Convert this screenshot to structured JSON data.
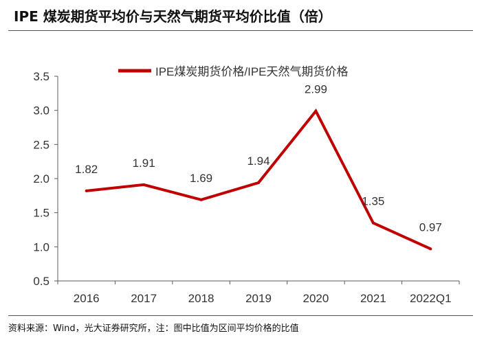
{
  "title": "IPE 煤炭期货平均价与天然气期货平均价比值（倍）",
  "source": "资料来源：Wind，光大证券研究所，注：图中比值为区间平均价格的比值",
  "colors": {
    "line": "#C00000",
    "text": "#333333",
    "axis": "#595959"
  },
  "chart_data": {
    "type": "line",
    "categories": [
      "2016",
      "2017",
      "2018",
      "2019",
      "2020",
      "2021",
      "2022Q1"
    ],
    "series": [
      {
        "name": "IPE煤炭期货价格/IPE天然气期货价格",
        "values": [
          1.82,
          1.91,
          1.69,
          1.94,
          2.99,
          1.35,
          0.97
        ]
      }
    ],
    "data_labels": [
      "1.82",
      "1.91",
      "1.69",
      "1.94",
      "2.99",
      "1.35",
      "0.97"
    ],
    "yticks": [
      "0.5",
      "1.0",
      "1.5",
      "2.0",
      "2.5",
      "3.0",
      "3.5"
    ],
    "ylim": [
      0.5,
      3.5
    ],
    "grid": false,
    "legend_position": "top"
  }
}
